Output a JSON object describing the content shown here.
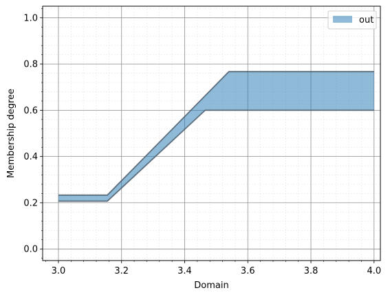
{
  "chart_data": {
    "type": "area",
    "xlabel": "Domain",
    "ylabel": "Membership degree",
    "xlim": [
      2.95,
      4.02
    ],
    "ylim": [
      -0.05,
      1.05
    ],
    "xticks": [
      3.0,
      3.2,
      3.4,
      3.6,
      3.8,
      4.0
    ],
    "xtick_labels": [
      "3.0",
      "3.2",
      "3.4",
      "3.6",
      "3.8",
      "4.0"
    ],
    "yticks": [
      0.0,
      0.2,
      0.4,
      0.6,
      0.8,
      1.0
    ],
    "ytick_labels": [
      "0.0",
      "0.2",
      "0.4",
      "0.6",
      "0.8",
      "1.0"
    ],
    "grid": true,
    "minor_grid": true,
    "legend_position": "top-right",
    "series": [
      {
        "name": "out",
        "color": "#1f77b4",
        "upper": {
          "x": [
            3.0,
            3.155,
            3.54,
            4.0
          ],
          "y": [
            0.233,
            0.233,
            0.767,
            0.767
          ]
        },
        "lower": {
          "x": [
            3.0,
            3.155,
            3.465,
            4.0
          ],
          "y": [
            0.207,
            0.207,
            0.6,
            0.6
          ]
        }
      }
    ]
  }
}
